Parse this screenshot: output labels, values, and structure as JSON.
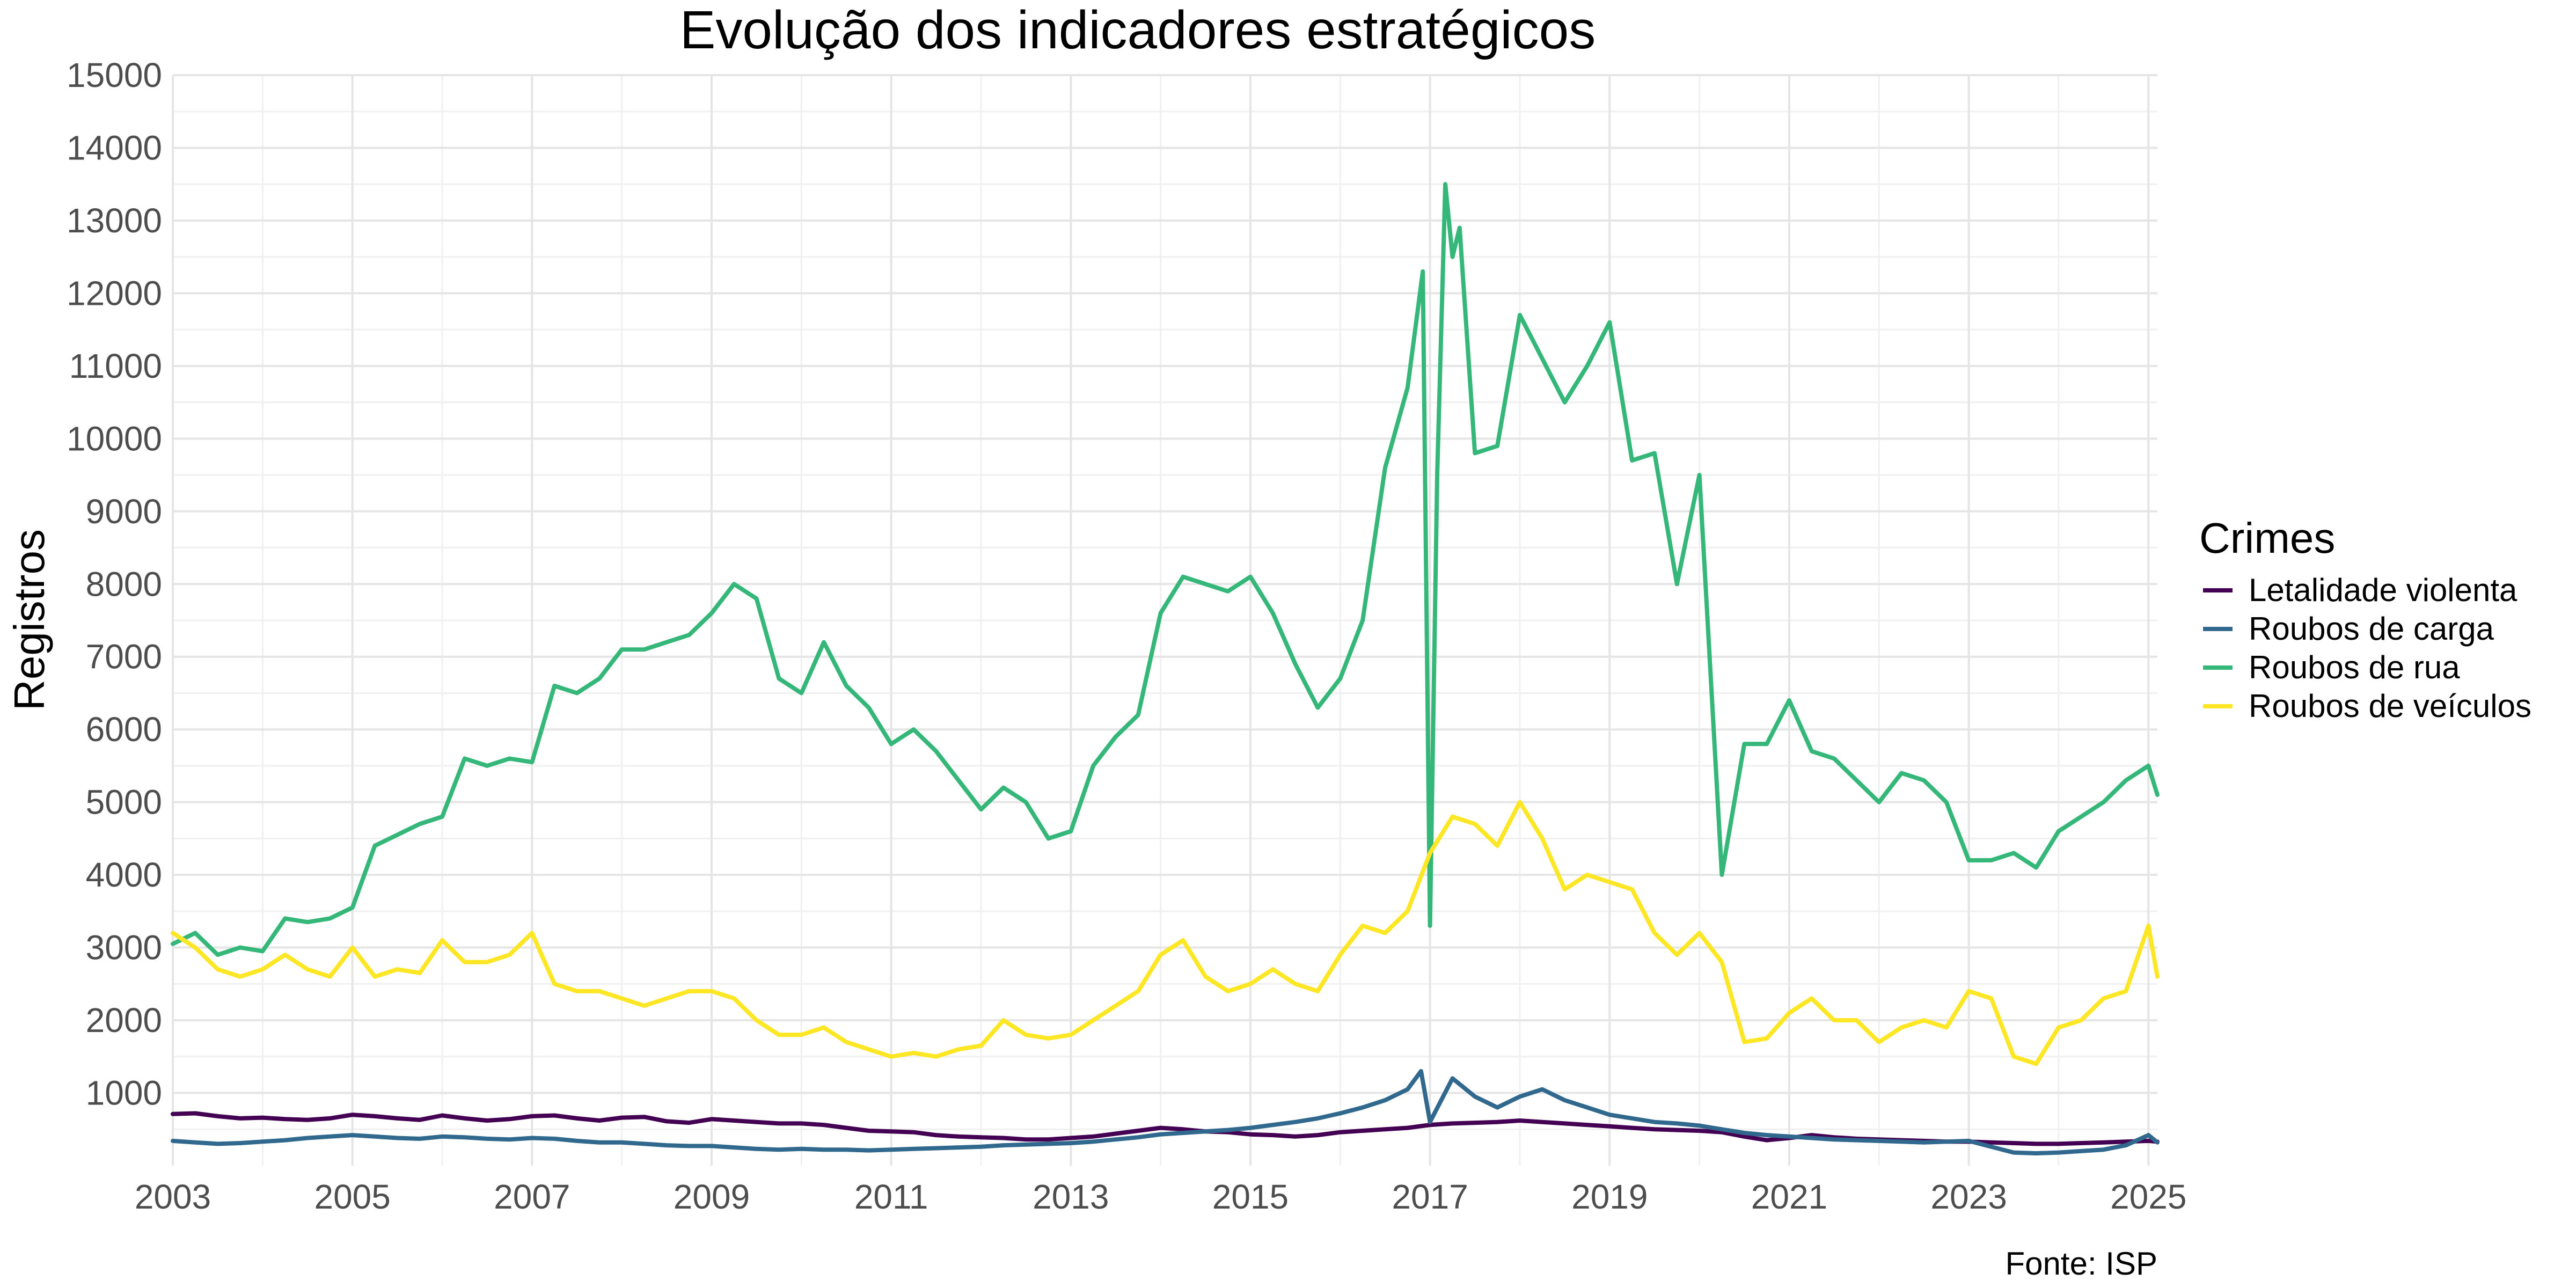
{
  "chart_data": {
    "type": "line",
    "title": "Evolução dos indicadores estratégicos",
    "xlabel": "",
    "ylabel": "Registros",
    "caption": "Fonte: ISP",
    "legend_title": "Crimes",
    "legend_position": "right",
    "grid": true,
    "xlim": [
      2003.0,
      2025.1
    ],
    "ylim": [
      0,
      15000
    ],
    "x_ticks": [
      "2003",
      "2005",
      "2007",
      "2009",
      "2011",
      "2013",
      "2015",
      "2017",
      "2019",
      "2021",
      "2023",
      "2025"
    ],
    "y_ticks": [
      "1000",
      "2000",
      "3000",
      "4000",
      "5000",
      "6000",
      "7000",
      "8000",
      "9000",
      "10000",
      "11000",
      "12000",
      "13000",
      "14000",
      "15000"
    ],
    "series": [
      {
        "name": "Letalidade violenta",
        "color": "#440154",
        "x": [
          2003.0,
          2003.25,
          2003.5,
          2003.75,
          2004.0,
          2004.25,
          2004.5,
          2004.75,
          2005.0,
          2005.25,
          2005.5,
          2005.75,
          2006.0,
          2006.25,
          2006.5,
          2006.75,
          2007.0,
          2007.25,
          2007.5,
          2007.75,
          2008.0,
          2008.25,
          2008.5,
          2008.75,
          2009.0,
          2009.25,
          2009.5,
          2009.75,
          2010.0,
          2010.25,
          2010.5,
          2010.75,
          2011.0,
          2011.25,
          2011.5,
          2011.75,
          2012.0,
          2012.25,
          2012.5,
          2012.75,
          2013.0,
          2013.25,
          2013.5,
          2013.75,
          2014.0,
          2014.25,
          2014.5,
          2014.75,
          2015.0,
          2015.25,
          2015.5,
          2015.75,
          2016.0,
          2016.25,
          2016.5,
          2016.75,
          2017.0,
          2017.25,
          2017.5,
          2017.75,
          2018.0,
          2018.25,
          2018.5,
          2018.75,
          2019.0,
          2019.25,
          2019.5,
          2019.75,
          2020.0,
          2020.25,
          2020.5,
          2020.75,
          2021.0,
          2021.25,
          2021.5,
          2021.75,
          2022.0,
          2022.25,
          2022.5,
          2022.75,
          2023.0,
          2023.25,
          2023.5,
          2023.75,
          2024.0,
          2024.25,
          2024.5,
          2024.75,
          2025.0,
          2025.1
        ],
        "y": [
          710,
          720,
          680,
          650,
          660,
          640,
          630,
          650,
          700,
          680,
          650,
          630,
          690,
          650,
          620,
          640,
          680,
          690,
          650,
          620,
          660,
          670,
          610,
          590,
          640,
          620,
          600,
          580,
          580,
          560,
          520,
          480,
          470,
          460,
          420,
          400,
          390,
          380,
          360,
          360,
          380,
          400,
          440,
          480,
          520,
          500,
          470,
          460,
          430,
          420,
          400,
          420,
          460,
          480,
          500,
          520,
          560,
          580,
          590,
          600,
          620,
          600,
          580,
          560,
          540,
          520,
          500,
          490,
          480,
          460,
          400,
          350,
          380,
          420,
          390,
          370,
          360,
          350,
          340,
          330,
          330,
          320,
          310,
          300,
          300,
          310,
          320,
          330,
          340,
          330
        ]
      },
      {
        "name": "Roubos de carga",
        "color": "#31688E",
        "x": [
          2003.0,
          2003.25,
          2003.5,
          2003.75,
          2004.0,
          2004.25,
          2004.5,
          2004.75,
          2005.0,
          2005.25,
          2005.5,
          2005.75,
          2006.0,
          2006.25,
          2006.5,
          2006.75,
          2007.0,
          2007.25,
          2007.5,
          2007.75,
          2008.0,
          2008.25,
          2008.5,
          2008.75,
          2009.0,
          2009.25,
          2009.5,
          2009.75,
          2010.0,
          2010.25,
          2010.5,
          2010.75,
          2011.0,
          2011.25,
          2011.5,
          2011.75,
          2012.0,
          2012.25,
          2012.5,
          2012.75,
          2013.0,
          2013.25,
          2013.5,
          2013.75,
          2014.0,
          2014.25,
          2014.5,
          2014.75,
          2015.0,
          2015.25,
          2015.5,
          2015.75,
          2016.0,
          2016.25,
          2016.5,
          2016.75,
          2016.9,
          2017.0,
          2017.25,
          2017.5,
          2017.75,
          2018.0,
          2018.25,
          2018.5,
          2018.75,
          2019.0,
          2019.25,
          2019.5,
          2019.75,
          2020.0,
          2020.25,
          2020.5,
          2020.75,
          2021.0,
          2021.25,
          2021.5,
          2021.75,
          2022.0,
          2022.25,
          2022.5,
          2022.75,
          2023.0,
          2023.25,
          2023.5,
          2023.75,
          2024.0,
          2024.25,
          2024.5,
          2024.75,
          2025.0,
          2025.1
        ],
        "y": [
          340,
          320,
          300,
          310,
          330,
          350,
          380,
          400,
          420,
          400,
          380,
          370,
          400,
          390,
          370,
          360,
          380,
          370,
          340,
          320,
          320,
          300,
          280,
          270,
          270,
          250,
          230,
          220,
          230,
          220,
          220,
          210,
          220,
          230,
          240,
          250,
          260,
          280,
          290,
          300,
          310,
          330,
          360,
          390,
          430,
          450,
          470,
          490,
          520,
          560,
          600,
          650,
          720,
          800,
          900,
          1050,
          1300,
          600,
          1200,
          950,
          800,
          950,
          1050,
          900,
          800,
          700,
          650,
          600,
          580,
          550,
          500,
          450,
          420,
          400,
          380,
          360,
          350,
          340,
          330,
          320,
          330,
          340,
          260,
          180,
          170,
          180,
          200,
          220,
          280,
          420,
          320
        ]
      },
      {
        "name": "Roubos de rua",
        "color": "#35B779",
        "x": [
          2003.0,
          2003.25,
          2003.5,
          2003.75,
          2004.0,
          2004.25,
          2004.5,
          2004.75,
          2005.0,
          2005.25,
          2005.5,
          2005.75,
          2006.0,
          2006.25,
          2006.5,
          2006.75,
          2007.0,
          2007.25,
          2007.5,
          2007.75,
          2008.0,
          2008.25,
          2008.5,
          2008.75,
          2009.0,
          2009.25,
          2009.5,
          2009.75,
          2010.0,
          2010.25,
          2010.5,
          2010.75,
          2011.0,
          2011.25,
          2011.5,
          2011.75,
          2012.0,
          2012.25,
          2012.5,
          2012.75,
          2013.0,
          2013.25,
          2013.5,
          2013.75,
          2014.0,
          2014.25,
          2014.5,
          2014.75,
          2015.0,
          2015.25,
          2015.5,
          2015.75,
          2016.0,
          2016.25,
          2016.5,
          2016.75,
          2016.92,
          2017.0,
          2017.08,
          2017.17,
          2017.25,
          2017.33,
          2017.5,
          2017.75,
          2018.0,
          2018.25,
          2018.5,
          2018.75,
          2019.0,
          2019.25,
          2019.5,
          2019.75,
          2020.0,
          2020.25,
          2020.5,
          2020.75,
          2021.0,
          2021.25,
          2021.5,
          2021.75,
          2022.0,
          2022.25,
          2022.5,
          2022.75,
          2023.0,
          2023.25,
          2023.5,
          2023.75,
          2024.0,
          2024.25,
          2024.5,
          2024.75,
          2025.0,
          2025.1
        ],
        "y": [
          3050,
          3200,
          2900,
          3000,
          2950,
          3400,
          3350,
          3400,
          3550,
          4400,
          4550,
          4700,
          4800,
          5600,
          5500,
          5600,
          5550,
          6600,
          6500,
          6700,
          7100,
          7100,
          7200,
          7300,
          7600,
          8000,
          7800,
          6700,
          6500,
          7200,
          6600,
          6300,
          5800,
          6000,
          5700,
          5300,
          4900,
          5200,
          5000,
          4500,
          4600,
          5500,
          5900,
          6200,
          7600,
          8100,
          8000,
          7900,
          8100,
          7600,
          6900,
          6300,
          6700,
          7500,
          9600,
          10700,
          12300,
          3300,
          9500,
          13500,
          12500,
          12900,
          9800,
          9900,
          11700,
          11100,
          10500,
          11000,
          11600,
          9700,
          9800,
          8000,
          9500,
          4000,
          5800,
          5800,
          6400,
          5700,
          5600,
          5300,
          5000,
          5400,
          5300,
          5000,
          4200,
          4200,
          4300,
          4100,
          4600,
          4800,
          5000,
          5300,
          5500,
          5100
        ]
      },
      {
        "name": "Roubos de veículos",
        "color": "#FDE725",
        "x": [
          2003.0,
          2003.25,
          2003.5,
          2003.75,
          2004.0,
          2004.25,
          2004.5,
          2004.75,
          2005.0,
          2005.25,
          2005.5,
          2005.75,
          2006.0,
          2006.25,
          2006.5,
          2006.75,
          2007.0,
          2007.25,
          2007.5,
          2007.75,
          2008.0,
          2008.25,
          2008.5,
          2008.75,
          2009.0,
          2009.25,
          2009.5,
          2009.75,
          2010.0,
          2010.25,
          2010.5,
          2010.75,
          2011.0,
          2011.25,
          2011.5,
          2011.75,
          2012.0,
          2012.25,
          2012.5,
          2012.75,
          2013.0,
          2013.25,
          2013.5,
          2013.75,
          2014.0,
          2014.25,
          2014.5,
          2014.75,
          2015.0,
          2015.25,
          2015.5,
          2015.75,
          2016.0,
          2016.25,
          2016.5,
          2016.75,
          2017.0,
          2017.25,
          2017.5,
          2017.75,
          2018.0,
          2018.25,
          2018.5,
          2018.75,
          2019.0,
          2019.25,
          2019.5,
          2019.75,
          2020.0,
          2020.25,
          2020.5,
          2020.75,
          2021.0,
          2021.25,
          2021.5,
          2021.75,
          2022.0,
          2022.25,
          2022.5,
          2022.75,
          2023.0,
          2023.25,
          2023.5,
          2023.75,
          2024.0,
          2024.25,
          2024.5,
          2024.75,
          2025.0,
          2025.1
        ],
        "y": [
          3200,
          3000,
          2700,
          2600,
          2700,
          2900,
          2700,
          2600,
          3000,
          2600,
          2700,
          2650,
          3100,
          2800,
          2800,
          2900,
          3200,
          2500,
          2400,
          2400,
          2300,
          2200,
          2300,
          2400,
          2400,
          2300,
          2000,
          1800,
          1800,
          1900,
          1700,
          1600,
          1500,
          1550,
          1500,
          1600,
          1650,
          2000,
          1800,
          1750,
          1800,
          2000,
          2200,
          2400,
          2900,
          3100,
          2600,
          2400,
          2500,
          2700,
          2500,
          2400,
          2900,
          3300,
          3200,
          3500,
          4300,
          4800,
          4700,
          4400,
          5000,
          4500,
          3800,
          4000,
          3900,
          3800,
          3200,
          2900,
          3200,
          2800,
          1700,
          1750,
          2100,
          2300,
          2000,
          2000,
          1700,
          1900,
          2000,
          1900,
          2400,
          2300,
          1500,
          1400,
          1900,
          2000,
          2300,
          2400,
          3300,
          2600
        ]
      }
    ]
  }
}
